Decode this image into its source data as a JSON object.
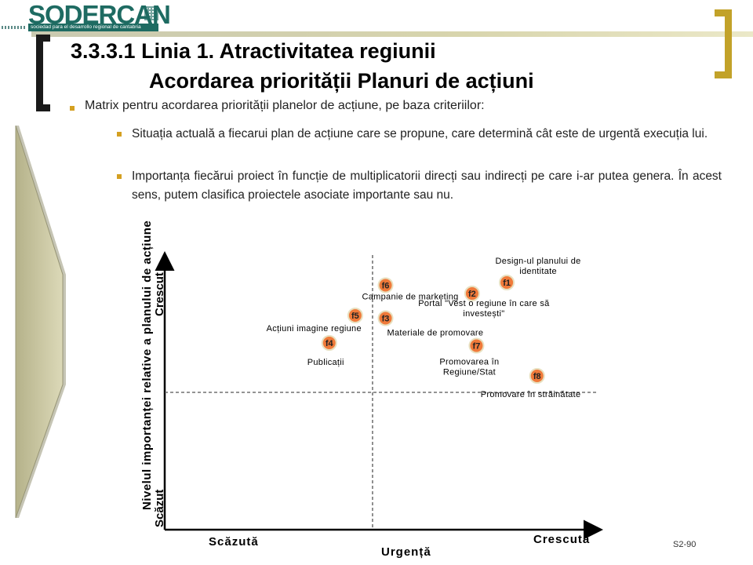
{
  "logo": {
    "name": "SODERCAN",
    "tagline": "sociedad para el desarrollo regional de cantabria"
  },
  "title": {
    "line1": "3.3.3.1 Linia 1. Atractivitatea regiunii",
    "line2": "Acordarea priorității Planuri de acțiuni"
  },
  "bullets": {
    "main": "Matrix pentru acordarea priorității planelor de acțiune, pe baza criteriilor:",
    "sub1": "Situația actuală a fiecarui plan de acțiune care se propune, care determină cât este de urgentă execuția lui.",
    "sub2": "Importanța fiecărui proiect în funcție de  multiplicatorii direcți sau indirecți pe care i-ar putea genera. În acest sens, putem clasifica proiectele asociate importante sau nu."
  },
  "colors": {
    "accent": "#d4a021",
    "marker": "#f07a3a",
    "logo": "#1e6b62",
    "bracket_right": "#c2a229"
  },
  "chart_data": {
    "type": "scatter",
    "xlabel": "Urgență",
    "ylabel": "Nivelul importanței relative a planului de acțiune",
    "x_low": "Scăzută",
    "x_high": "Crescută",
    "y_low": "Scăzut",
    "y_high": "Crescut",
    "xlim": [
      0,
      100
    ],
    "ylim": [
      0,
      100
    ],
    "divider_x": 48,
    "divider_y": 50,
    "points": [
      {
        "id": "f1",
        "label": "Design-ul planului de identitate",
        "x": 79,
        "y": 90
      },
      {
        "id": "f2",
        "label": "Portal \"Vest o regiune în care să investești\"",
        "x": 71,
        "y": 86
      },
      {
        "id": "f3",
        "label": "Materiale de promovare",
        "x": 51,
        "y": 77
      },
      {
        "id": "f4",
        "label": "Publicații",
        "x": 38,
        "y": 68
      },
      {
        "id": "f5",
        "label": "Acțiuni imagine regiune",
        "x": 44,
        "y": 78
      },
      {
        "id": "f6",
        "label": "Campanie de marketing",
        "x": 51,
        "y": 89
      },
      {
        "id": "f7",
        "label": "Promovarea în Regiune/Stat",
        "x": 72,
        "y": 67
      },
      {
        "id": "f8",
        "label": "Promovare în străinătate",
        "x": 86,
        "y": 56
      }
    ]
  },
  "slide_number": "S2-90"
}
